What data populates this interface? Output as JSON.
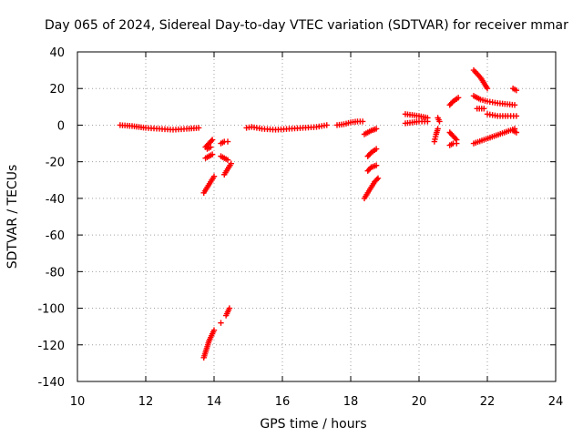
{
  "chart_data": {
    "type": "scatter",
    "title": "Day 065 of 2024, Sidereal Day-to-day VTEC variation (SDTVAR) for receiver mmar",
    "xlabel": "GPS time / hours",
    "ylabel": "SDTVAR / TECUs",
    "xlim": [
      10,
      24
    ],
    "ylim": [
      -140,
      40
    ],
    "xticks": [
      "10",
      "12",
      "14",
      "16",
      "18",
      "20",
      "22",
      "24"
    ],
    "yticks": [
      "40",
      "20",
      "0",
      "-20",
      "-40",
      "-60",
      "-80",
      "-100",
      "-120",
      "-140"
    ],
    "grid": true,
    "marker": "plus",
    "color": "#ff0000",
    "segments": [
      {
        "x": [
          11.25,
          11.6,
          12.0,
          12.4,
          12.8,
          13.2,
          13.55
        ],
        "y": [
          0,
          -0.5,
          -1.5,
          -2,
          -2.5,
          -2,
          -1.5
        ]
      },
      {
        "x": [
          13.7,
          13.8,
          13.9,
          14.0
        ],
        "y": [
          -37,
          -34,
          -31,
          -28
        ]
      },
      {
        "x": [
          13.75,
          13.85,
          13.95
        ],
        "y": [
          -12,
          -10,
          -8
        ]
      },
      {
        "x": [
          13.75,
          13.85,
          13.95
        ],
        "y": [
          -18,
          -17,
          -16
        ]
      },
      {
        "x": [
          13.8,
          13.9
        ],
        "y": [
          -13,
          -12
        ]
      },
      {
        "x": [
          14.2,
          14.3,
          14.4
        ],
        "y": [
          -10,
          -9,
          -9
        ]
      },
      {
        "x": [
          14.2,
          14.3,
          14.4
        ],
        "y": [
          -17,
          -18,
          -19
        ]
      },
      {
        "x": [
          14.3,
          14.4,
          14.5
        ],
        "y": [
          -27,
          -24,
          -21
        ]
      },
      {
        "x": [
          13.7,
          13.75,
          13.8,
          13.85,
          13.9,
          13.95,
          14.0
        ],
        "y": [
          -127,
          -124,
          -121,
          -118,
          -116,
          -114,
          -112
        ]
      },
      {
        "x": [
          14.2
        ],
        "y": [
          -108
        ]
      },
      {
        "x": [
          14.35,
          14.4,
          14.45
        ],
        "y": [
          -104,
          -102,
          -100
        ]
      },
      {
        "x": [
          14.95,
          15.1,
          15.4,
          15.8,
          16.2,
          16.6,
          17.0,
          17.3
        ],
        "y": [
          -1.5,
          -1,
          -2,
          -2.5,
          -2,
          -1.5,
          -1,
          0
        ]
      },
      {
        "x": [
          17.6,
          17.8,
          18.0,
          18.2,
          18.35
        ],
        "y": [
          0,
          0.5,
          1.5,
          2,
          2
        ]
      },
      {
        "x": [
          18.4,
          18.5,
          18.6,
          18.75
        ],
        "y": [
          -5,
          -4,
          -3,
          -2
        ]
      },
      {
        "x": [
          18.5,
          18.6,
          18.75
        ],
        "y": [
          -17,
          -15,
          -13
        ]
      },
      {
        "x": [
          18.5,
          18.6,
          18.75
        ],
        "y": [
          -25,
          -23,
          -22
        ]
      },
      {
        "x": [
          18.4,
          18.5,
          18.6,
          18.7,
          18.8
        ],
        "y": [
          -40,
          -37,
          -34,
          -31,
          -29
        ]
      },
      {
        "x": [
          19.6,
          19.8,
          20.0,
          20.25
        ],
        "y": [
          6,
          5.5,
          5,
          4
        ]
      },
      {
        "x": [
          19.6,
          19.8,
          20.0,
          20.25
        ],
        "y": [
          1,
          1.5,
          2,
          2
        ]
      },
      {
        "x": [
          20.45,
          20.5,
          20.55
        ],
        "y": [
          -9,
          -5,
          -2
        ]
      },
      {
        "x": [
          20.55,
          20.6
        ],
        "y": [
          4,
          2
        ]
      },
      {
        "x": [
          20.9,
          21.0,
          21.15
        ],
        "y": [
          11,
          13,
          15
        ]
      },
      {
        "x": [
          20.9,
          21.0,
          21.1
        ],
        "y": [
          -4,
          -6,
          -8
        ]
      },
      {
        "x": [
          20.9,
          21.0,
          21.1
        ],
        "y": [
          -11,
          -10,
          -10
        ]
      },
      {
        "x": [
          21.6,
          21.8,
          22.0
        ],
        "y": [
          30,
          26,
          20
        ]
      },
      {
        "x": [
          21.6,
          21.8,
          22.0,
          22.3,
          22.8
        ],
        "y": [
          16,
          14,
          13,
          12,
          11
        ]
      },
      {
        "x": [
          21.7,
          21.9
        ],
        "y": [
          9,
          9
        ]
      },
      {
        "x": [
          22.0,
          22.3,
          22.6,
          22.85
        ],
        "y": [
          6,
          5,
          5,
          5
        ]
      },
      {
        "x": [
          21.6,
          21.9,
          22.2,
          22.5,
          22.8
        ],
        "y": [
          -10,
          -8,
          -6,
          -4,
          -2
        ]
      },
      {
        "x": [
          22.75,
          22.85
        ],
        "y": [
          20,
          19
        ]
      },
      {
        "x": [
          22.75,
          22.85
        ],
        "y": [
          -3,
          -4
        ]
      }
    ]
  }
}
